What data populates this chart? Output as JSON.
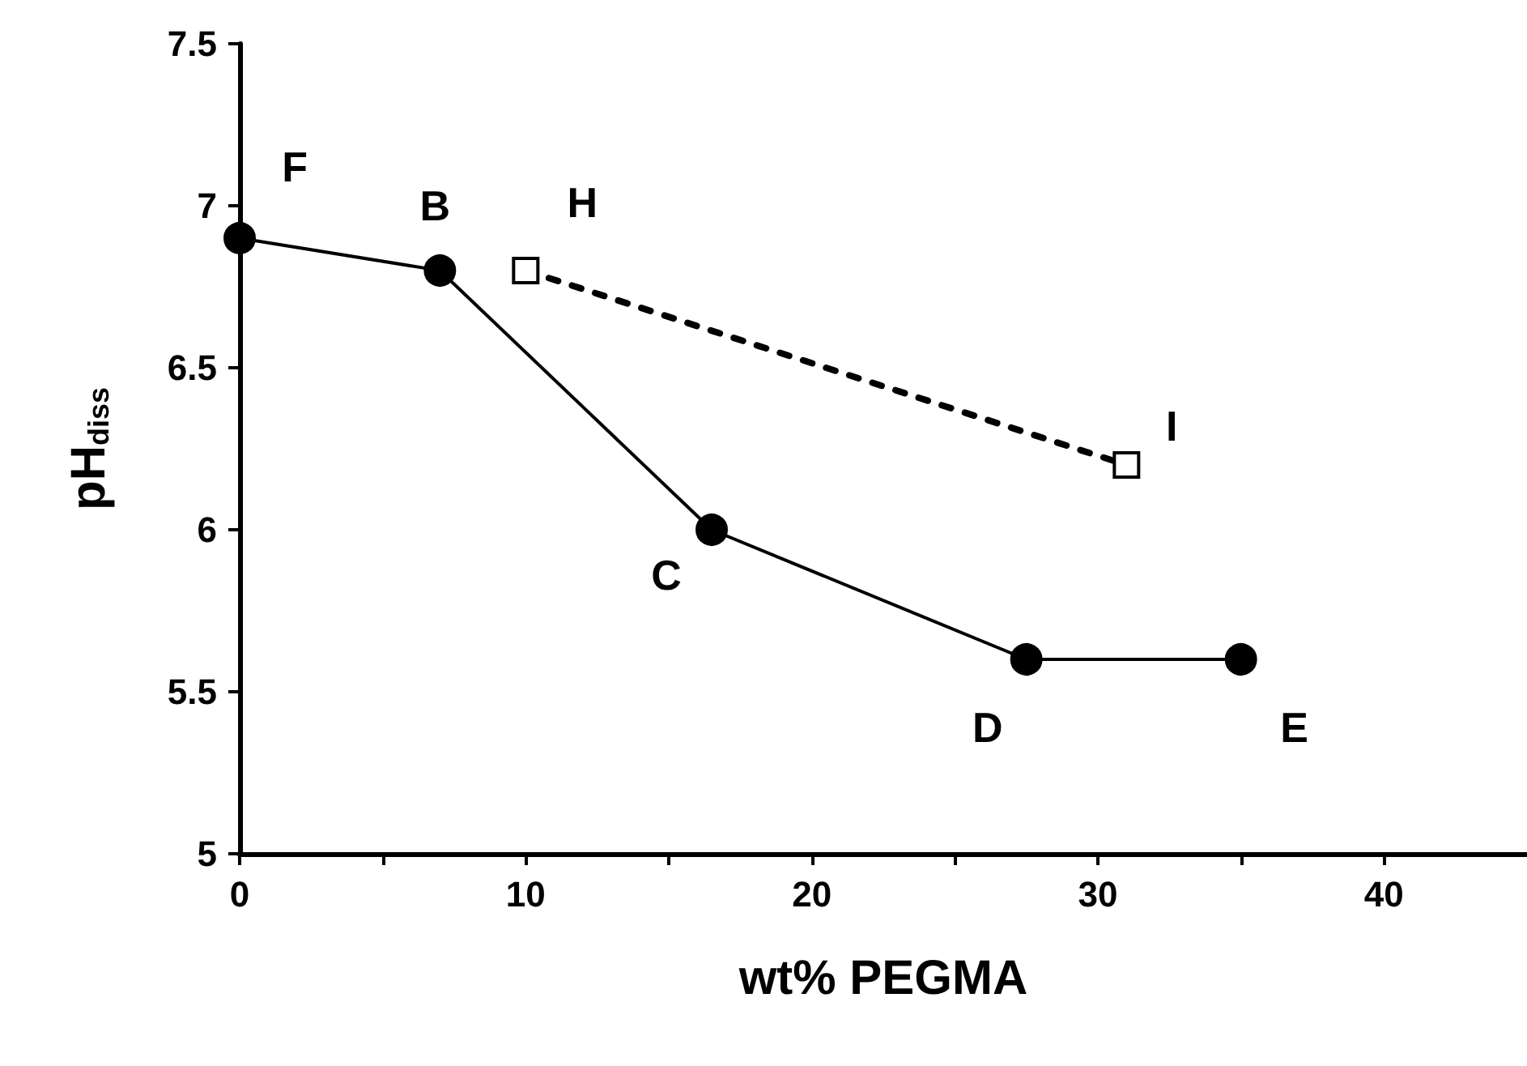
{
  "chart_data": {
    "type": "line",
    "xlabel": "wt% PEGMA",
    "ylabel": "pH$_{diss}$",
    "xlim": [
      0,
      45
    ],
    "xticks": [
      0,
      {
        "value": 5,
        "label": null
      },
      10,
      {
        "value": 15,
        "label": null
      },
      20,
      {
        "value": 25,
        "label": null
      },
      30,
      {
        "value": 35,
        "label": null
      },
      40
    ],
    "ylim": [
      5,
      7.5
    ],
    "yticks": [
      5,
      5.5,
      6,
      6.5,
      7,
      7.5
    ],
    "series": [
      {
        "color": "#000000",
        "x": [
          0,
          7,
          16.5,
          27.5,
          35
        ],
        "values": [
          6.9,
          6.8,
          6.0,
          5.6,
          5.6
        ],
        "marker": "circle",
        "line_style": "solid"
      },
      {
        "color": "#000000",
        "x": [
          10,
          31
        ],
        "values": [
          6.8,
          6.2
        ],
        "marker": "square",
        "line_style": "dashed"
      }
    ],
    "annotations": [
      {
        "text": "F",
        "x": 0,
        "y": 6.9
      },
      {
        "text": "B",
        "x": 7,
        "y": 6.8
      },
      {
        "text": "H",
        "x": 10,
        "y": 6.8
      },
      {
        "text": "C",
        "x": 16.5,
        "y": 6.0
      },
      {
        "text": "D",
        "x": 27.5,
        "y": 5.6
      },
      {
        "text": "E",
        "x": 35,
        "y": 5.6
      },
      {
        "text": "I",
        "x": 31,
        "y": 6.2
      }
    ]
  }
}
